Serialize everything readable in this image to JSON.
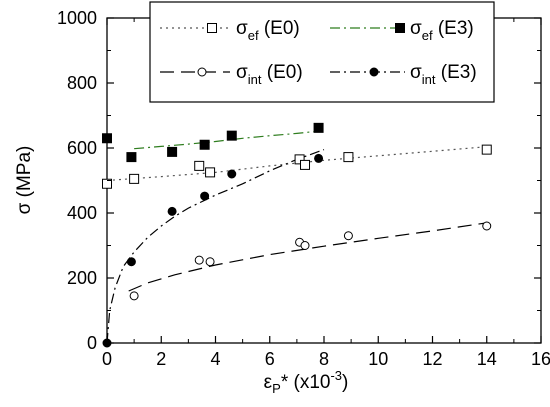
{
  "chart_data": {
    "type": "scatter",
    "xlabel": {
      "base": "ε",
      "sub": "P",
      "tail": "* (x10",
      "sup": "-3",
      "close": ")"
    },
    "ylabel": "σ (MPa)",
    "xlim": [
      0,
      16
    ],
    "ylim": [
      0,
      1000
    ],
    "x_ticks": [
      0,
      2,
      4,
      6,
      8,
      10,
      12,
      14,
      16
    ],
    "y_ticks": [
      0,
      200,
      400,
      600,
      800,
      1000
    ],
    "x_tick_labels": [
      "0",
      "2",
      "4",
      "6",
      "8",
      "10",
      "12",
      "14",
      "16"
    ],
    "y_tick_labels": [
      "0",
      "200",
      "400",
      "600",
      "800",
      "1000"
    ],
    "grid": false,
    "legend_position": "top",
    "series": [
      {
        "key": "ef_e0",
        "name": {
          "base": "σ",
          "sub": "ef",
          "tail": " (E0)"
        },
        "marker": "open-square",
        "line": "dotted",
        "color": "#555555",
        "points": [
          [
            0,
            490
          ],
          [
            1,
            505
          ],
          [
            3.4,
            545
          ],
          [
            3.8,
            525
          ],
          [
            7.1,
            565
          ],
          [
            7.3,
            548
          ],
          [
            8.9,
            572
          ],
          [
            14,
            595
          ]
        ],
        "fit": [
          [
            0,
            500
          ],
          [
            2,
            512
          ],
          [
            4,
            525
          ],
          [
            6,
            545
          ],
          [
            8,
            562
          ],
          [
            10,
            576
          ],
          [
            12,
            590
          ],
          [
            14,
            604
          ]
        ]
      },
      {
        "key": "ef_e3",
        "name": {
          "base": "σ",
          "sub": "ef",
          "tail": " (E3)"
        },
        "marker": "filled-square",
        "line": "dash-dot",
        "color": "#2e7d1e",
        "points": [
          [
            0,
            630
          ],
          [
            0.9,
            572
          ],
          [
            2.4,
            588
          ],
          [
            3.6,
            610
          ],
          [
            4.6,
            638
          ],
          [
            7.8,
            662
          ]
        ],
        "fit": [
          [
            1,
            598
          ],
          [
            2,
            605
          ],
          [
            3,
            612
          ],
          [
            4,
            620
          ],
          [
            5,
            630
          ],
          [
            6,
            638
          ],
          [
            7,
            645
          ],
          [
            7.8,
            652
          ]
        ]
      },
      {
        "key": "int_e0",
        "name": {
          "base": "σ",
          "sub": "int",
          "tail": " (E0)"
        },
        "marker": "open-circle",
        "line": "long-dash",
        "color": "#000000",
        "points": [
          [
            1,
            145
          ],
          [
            3.4,
            255
          ],
          [
            3.8,
            250
          ],
          [
            7.1,
            310
          ],
          [
            7.3,
            300
          ],
          [
            8.9,
            330
          ],
          [
            14,
            360
          ]
        ],
        "fit": [
          [
            0.8,
            160
          ],
          [
            1.5,
            185
          ],
          [
            2.5,
            210
          ],
          [
            4,
            240
          ],
          [
            6,
            272
          ],
          [
            8,
            298
          ],
          [
            10,
            322
          ],
          [
            12,
            345
          ],
          [
            14,
            370
          ]
        ]
      },
      {
        "key": "int_e3",
        "name": {
          "base": "σ",
          "sub": "int",
          "tail": " (E3)"
        },
        "marker": "filled-circle",
        "line": "dash-dot",
        "color": "#000000",
        "points": [
          [
            0,
            0
          ],
          [
            0.9,
            250
          ],
          [
            2.4,
            405
          ],
          [
            3.6,
            452
          ],
          [
            4.6,
            520
          ],
          [
            7.8,
            568
          ]
        ],
        "fit": [
          [
            0,
            0
          ],
          [
            0.1,
            100
          ],
          [
            0.3,
            170
          ],
          [
            0.6,
            235
          ],
          [
            1,
            280
          ],
          [
            1.5,
            325
          ],
          [
            2,
            360
          ],
          [
            2.5,
            390
          ],
          [
            3,
            415
          ],
          [
            4,
            455
          ],
          [
            5,
            490
          ],
          [
            6,
            530
          ],
          [
            7,
            565
          ],
          [
            8,
            595
          ]
        ]
      }
    ]
  }
}
